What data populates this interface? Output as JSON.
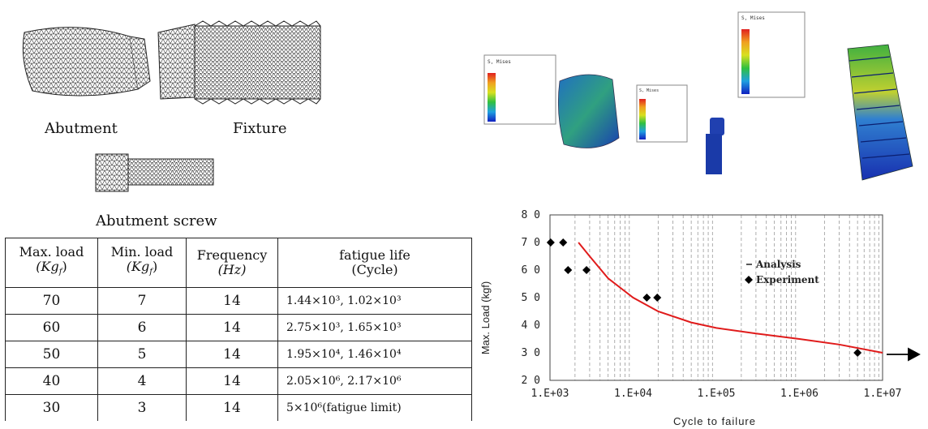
{
  "mesh": {
    "labels": {
      "abutment": "Abutment",
      "fixture": "Fixture",
      "screw": "Abutment screw"
    }
  },
  "table": {
    "headers": [
      {
        "top": "Max. load",
        "unit": "(Kg",
        "unit_sub": "f",
        "unit_end": ")"
      },
      {
        "top": "Min. load",
        "unit": "(Kg",
        "unit_sub": "f",
        "unit_end": ")"
      },
      {
        "top": "Frequency",
        "unit": "(Hz)",
        "unit_sub": "",
        "unit_end": ""
      },
      {
        "top": "fatigue life",
        "unit": "(Cycle)",
        "unit_sub": "",
        "unit_end": ""
      }
    ],
    "rows": [
      {
        "max": "70",
        "min": "7",
        "freq": "14",
        "life": "1.44×10³, 1.02×10³"
      },
      {
        "max": "60",
        "min": "6",
        "freq": "14",
        "life": "2.75×10³, 1.65×10³"
      },
      {
        "max": "50",
        "min": "5",
        "freq": "14",
        "life": "1.95×10⁴, 1.46×10⁴"
      },
      {
        "max": "40",
        "min": "4",
        "freq": "14",
        "life": "2.05×10⁶, 2.17×10⁶"
      },
      {
        "max": "30",
        "min": "3",
        "freq": "14",
        "life": "5×10⁶(fatigue limit)"
      }
    ]
  },
  "fea": {
    "legend_title": "S, Mises"
  },
  "chart_data": {
    "type": "scatter",
    "title": "",
    "xlabel": "Cycle to failure",
    "ylabel": "Max. Load (kgf)",
    "xscale": "log",
    "xlim": [
      1000,
      10000000
    ],
    "ylim": [
      20,
      80
    ],
    "x_tick_labels": [
      "1.E+03",
      "1.E+04",
      "1.E+05",
      "1.E+06",
      "1.E+07"
    ],
    "x_tick_values": [
      1000,
      10000,
      100000,
      1000000,
      10000000
    ],
    "y_ticks": [
      20,
      30,
      40,
      50,
      60,
      70,
      80
    ],
    "legend": {
      "position": "right",
      "entries": [
        "Analysis",
        "Experiment"
      ]
    },
    "series": [
      {
        "name": "Analysis",
        "kind": "line",
        "color": "#e01b1b",
        "x": [
          2200,
          3000,
          5000,
          10000,
          20000,
          50000,
          100000,
          300000,
          1000000,
          3000000,
          10000000
        ],
        "y": [
          70,
          65,
          57,
          50,
          45,
          41,
          39,
          37,
          35,
          33,
          30
        ]
      },
      {
        "name": "Experiment",
        "kind": "marker",
        "color": "#000000",
        "x": [
          1440,
          1020,
          2750,
          1650,
          19500,
          14600,
          5000000
        ],
        "y": [
          70,
          70,
          60,
          60,
          50,
          50,
          30
        ]
      }
    ]
  }
}
